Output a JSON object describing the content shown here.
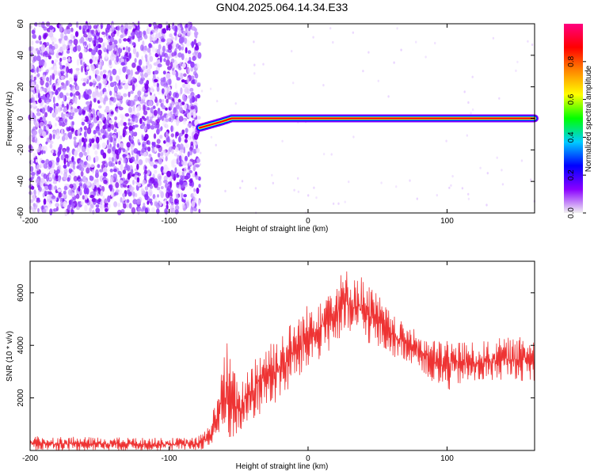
{
  "title": "GN04.2025.064.14.34.E33",
  "chart_data": [
    {
      "type": "heatmap",
      "xlabel": "Height of straight line (km)",
      "ylabel": "Frequency (Hz)",
      "xlim": [
        -200,
        163
      ],
      "ylim": [
        -60,
        60
      ],
      "xticks": [
        -200,
        -100,
        0,
        100
      ],
      "yticks": [
        -60,
        -40,
        -20,
        0,
        20,
        40,
        60
      ],
      "colorbar": {
        "label": "Normalized spectral amplitude",
        "range": [
          0,
          1
        ],
        "ticks": [
          0.0,
          0.2,
          0.4,
          0.6,
          0.8
        ],
        "colors": [
          "#f2f2f2",
          "#8a00ff",
          "#0000ff",
          "#00ccff",
          "#00ff00",
          "#ffff00",
          "#ff8800",
          "#ff0000",
          "#ff0080"
        ]
      },
      "noise_region": {
        "x": [
          -200,
          -78
        ],
        "y": [
          -60,
          60
        ]
      },
      "signal_track": [
        {
          "x": -78,
          "y": -6,
          "amp": 0.55
        },
        {
          "x": -70,
          "y": -4,
          "amp": 0.7
        },
        {
          "x": -62,
          "y": -2,
          "amp": 0.75
        },
        {
          "x": -55,
          "y": 0,
          "amp": 0.8
        },
        {
          "x": -40,
          "y": 0,
          "amp": 0.85
        },
        {
          "x": -20,
          "y": 0,
          "amp": 0.9
        },
        {
          "x": 0,
          "y": 0,
          "amp": 0.95
        },
        {
          "x": 60,
          "y": 0,
          "amp": 0.95
        },
        {
          "x": 120,
          "y": 0,
          "amp": 0.9
        },
        {
          "x": 163,
          "y": 0,
          "amp": 0.85
        }
      ]
    },
    {
      "type": "line",
      "xlabel": "Height of straight line (km)",
      "ylabel": "SNR (10 * v/v)",
      "xlim": [
        -200,
        163
      ],
      "ylim": [
        0,
        7200
      ],
      "xticks": [
        -200,
        -100,
        0,
        100
      ],
      "yticks": [
        2000,
        4000,
        6000
      ],
      "series": [
        {
          "color": "#ee3333",
          "envelope": [
            {
              "x": -200,
              "lo": 0,
              "hi": 550
            },
            {
              "x": -150,
              "lo": 0,
              "hi": 500
            },
            {
              "x": -100,
              "lo": 0,
              "hi": 480
            },
            {
              "x": -80,
              "lo": 0,
              "hi": 500
            },
            {
              "x": -70,
              "lo": 100,
              "hi": 1000
            },
            {
              "x": -65,
              "lo": 300,
              "hi": 2600
            },
            {
              "x": -58,
              "lo": 200,
              "hi": 4200
            },
            {
              "x": -50,
              "lo": 600,
              "hi": 2400
            },
            {
              "x": -40,
              "lo": 1000,
              "hi": 3600
            },
            {
              "x": -30,
              "lo": 1600,
              "hi": 4200
            },
            {
              "x": -20,
              "lo": 1800,
              "hi": 4500
            },
            {
              "x": -10,
              "lo": 2500,
              "hi": 5000
            },
            {
              "x": 0,
              "lo": 3000,
              "hi": 5600
            },
            {
              "x": 10,
              "lo": 3500,
              "hi": 6200
            },
            {
              "x": 20,
              "lo": 4000,
              "hi": 6600
            },
            {
              "x": 30,
              "lo": 4200,
              "hi": 7000
            },
            {
              "x": 40,
              "lo": 4200,
              "hi": 6600
            },
            {
              "x": 50,
              "lo": 3800,
              "hi": 6000
            },
            {
              "x": 60,
              "lo": 3600,
              "hi": 5200
            },
            {
              "x": 70,
              "lo": 3400,
              "hi": 4800
            },
            {
              "x": 80,
              "lo": 3200,
              "hi": 4500
            },
            {
              "x": 90,
              "lo": 2400,
              "hi": 4200
            },
            {
              "x": 100,
              "lo": 2200,
              "hi": 4300
            },
            {
              "x": 110,
              "lo": 2500,
              "hi": 4200
            },
            {
              "x": 120,
              "lo": 2500,
              "hi": 4100
            },
            {
              "x": 130,
              "lo": 2600,
              "hi": 4200
            },
            {
              "x": 140,
              "lo": 2700,
              "hi": 4300
            },
            {
              "x": 150,
              "lo": 2700,
              "hi": 4300
            },
            {
              "x": 163,
              "lo": 2500,
              "hi": 4400
            }
          ]
        }
      ]
    }
  ]
}
